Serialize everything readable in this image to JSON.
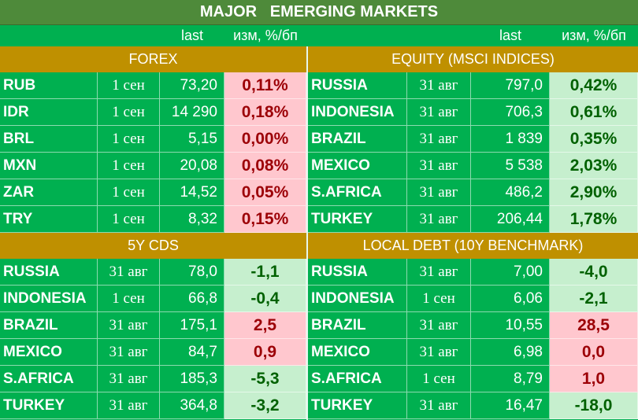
{
  "title": "MAJOR   EMERGING MARKETS",
  "column_headers": {
    "left": {
      "last": "last",
      "change": "изм, %/бп"
    },
    "right": {
      "last": "last",
      "change": "изм, %/бп"
    }
  },
  "colors": {
    "title_bg": "#4e8a3a",
    "board_bg": "#00b050",
    "section_bg": "#bf9000",
    "neg_bg": "#ffc7ce",
    "neg_text": "#9c0006",
    "pos_bg": "#c6efce",
    "pos_text": "#006100"
  },
  "sections": {
    "forex": {
      "title": "FOREX",
      "rows": [
        {
          "name": "RUB",
          "date": "1 сен",
          "last": "73,20",
          "change": "0,11%",
          "tone": "neg"
        },
        {
          "name": "IDR",
          "date": "1 сен",
          "last": "14 290",
          "change": "0,18%",
          "tone": "neg"
        },
        {
          "name": "BRL",
          "date": "1 сен",
          "last": "5,15",
          "change": "0,00%",
          "tone": "neg"
        },
        {
          "name": "MXN",
          "date": "1 сен",
          "last": "20,08",
          "change": "0,08%",
          "tone": "neg"
        },
        {
          "name": "ZAR",
          "date": "1 сен",
          "last": "14,52",
          "change": "0,05%",
          "tone": "neg"
        },
        {
          "name": "TRY",
          "date": "1 сен",
          "last": "8,32",
          "change": "0,15%",
          "tone": "neg"
        }
      ]
    },
    "equity": {
      "title": "EQUITY (MSCI INDICES)",
      "rows": [
        {
          "name": "RUSSIA",
          "date": "31 авг",
          "last": "797,0",
          "change": "0,42%",
          "tone": "pos"
        },
        {
          "name": "INDONESIA",
          "date": "31 авг",
          "last": "706,3",
          "change": "0,61%",
          "tone": "pos"
        },
        {
          "name": "BRAZIL",
          "date": "31 авг",
          "last": "1 839",
          "change": "0,35%",
          "tone": "pos"
        },
        {
          "name": "MEXICO",
          "date": "31 авг",
          "last": "5 538",
          "change": "2,03%",
          "tone": "pos"
        },
        {
          "name": "S.AFRICA",
          "date": "31 авг",
          "last": "486,2",
          "change": "2,90%",
          "tone": "pos"
        },
        {
          "name": "TURKEY",
          "date": "31 авг",
          "last": "206,44",
          "change": "1,78%",
          "tone": "pos"
        }
      ]
    },
    "cds": {
      "title": "5Y CDS",
      "rows": [
        {
          "name": "RUSSIA",
          "date": "31 авг",
          "last": "78,0",
          "change": "-1,1",
          "tone": "pos"
        },
        {
          "name": "INDONESIA",
          "date": "1 сен",
          "last": "66,8",
          "change": "-0,4",
          "tone": "pos"
        },
        {
          "name": "BRAZIL",
          "date": "31 авг",
          "last": "175,1",
          "change": "2,5",
          "tone": "neg"
        },
        {
          "name": "MEXICO",
          "date": "31 авг",
          "last": "84,7",
          "change": "0,9",
          "tone": "neg"
        },
        {
          "name": "S.AFRICA",
          "date": "31 авг",
          "last": "185,3",
          "change": "-5,3",
          "tone": "pos"
        },
        {
          "name": "TURKEY",
          "date": "31 авг",
          "last": "364,8",
          "change": "-3,2",
          "tone": "pos"
        }
      ]
    },
    "local_debt": {
      "title": "LOCAL DEBT (10Y BENCHMARK)",
      "rows": [
        {
          "name": "RUSSIA",
          "date": "31 авг",
          "last": "7,00",
          "change": "-4,0",
          "tone": "pos"
        },
        {
          "name": "INDONESIA",
          "date": "1 сен",
          "last": "6,06",
          "change": "-2,1",
          "tone": "pos"
        },
        {
          "name": "BRAZIL",
          "date": "31 авг",
          "last": "10,55",
          "change": "28,5",
          "tone": "neg"
        },
        {
          "name": "MEXICO",
          "date": "31 авг",
          "last": "6,98",
          "change": "0,0",
          "tone": "neg"
        },
        {
          "name": "S.AFRICA",
          "date": "1 сен",
          "last": "8,79",
          "change": "1,0",
          "tone": "neg"
        },
        {
          "name": "TURKEY",
          "date": "31 авг",
          "last": "16,47",
          "change": "-18,0",
          "tone": "pos"
        }
      ]
    }
  }
}
